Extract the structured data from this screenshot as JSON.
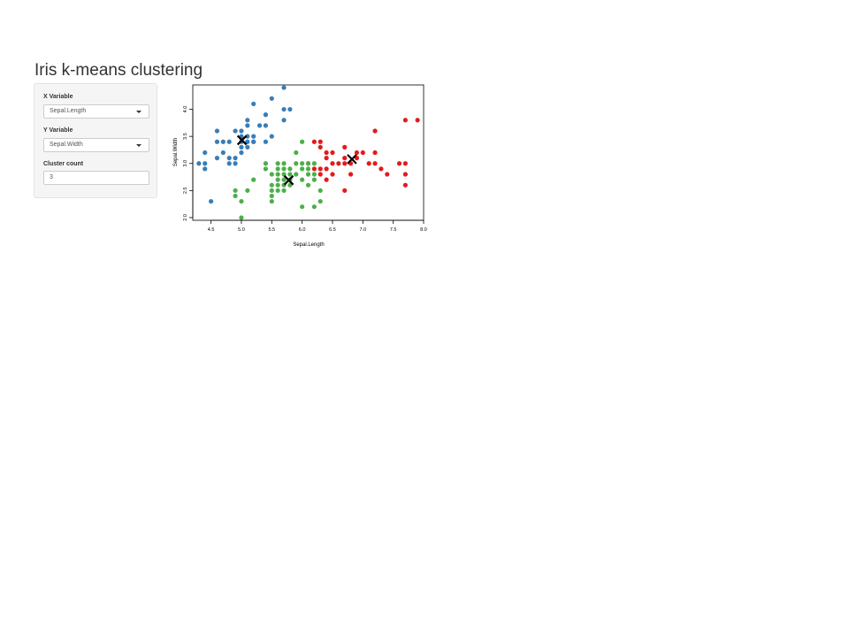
{
  "page": {
    "title": "Iris k-means clustering"
  },
  "sidebar": {
    "x_label": "X Variable",
    "x_value": "Sepal.Length",
    "y_label": "Y Variable",
    "y_value": "Sepal.Width",
    "k_label": "Cluster count",
    "k_value": "3"
  },
  "chart_data": {
    "type": "scatter",
    "xlabel": "Sepal.Length",
    "ylabel": "Sepal.Width",
    "xlim": [
      4.2,
      8.0
    ],
    "ylim": [
      1.95,
      4.45
    ],
    "xticks": [
      "4.5",
      "5.0",
      "5.5",
      "6.0",
      "6.5",
      "7.0",
      "7.5",
      "8.0"
    ],
    "yticks": [
      "2.0",
      "2.5",
      "3.0",
      "3.5",
      "4.0"
    ],
    "grid": false,
    "legend": "none",
    "colors": {
      "cluster_1": "#E41A1C",
      "cluster_2": "#377EB8",
      "cluster_3": "#4DAF4A",
      "centers": "#000000"
    },
    "series": [
      {
        "cluster": 1,
        "color": "#E41A1C",
        "points": [
          [
            7.0,
            3.2
          ],
          [
            6.9,
            3.1
          ],
          [
            6.7,
            3.1
          ],
          [
            7.7,
            3.8
          ],
          [
            7.9,
            3.8
          ],
          [
            7.2,
            3.6
          ],
          [
            6.5,
            3.2
          ],
          [
            6.4,
            3.2
          ],
          [
            6.3,
            3.3
          ],
          [
            6.2,
            3.4
          ],
          [
            6.3,
            3.4
          ],
          [
            6.1,
            3.0
          ],
          [
            6.3,
            2.9
          ],
          [
            6.5,
            3.0
          ],
          [
            6.7,
            3.0
          ],
          [
            6.8,
            3.0
          ],
          [
            7.1,
            3.0
          ],
          [
            7.6,
            3.0
          ],
          [
            7.3,
            2.9
          ],
          [
            7.2,
            3.0
          ],
          [
            7.4,
            2.8
          ],
          [
            7.7,
            3.0
          ],
          [
            7.7,
            2.8
          ],
          [
            7.7,
            2.6
          ],
          [
            6.7,
            2.5
          ],
          [
            6.4,
            3.1
          ],
          [
            6.7,
            3.3
          ],
          [
            6.9,
            3.2
          ],
          [
            6.5,
            2.8
          ],
          [
            6.3,
            2.8
          ],
          [
            6.4,
            2.9
          ],
          [
            6.6,
            3.0
          ],
          [
            6.2,
            2.9
          ],
          [
            6.4,
            2.7
          ],
          [
            6.8,
            2.8
          ],
          [
            7.2,
            3.2
          ]
        ]
      },
      {
        "cluster": 2,
        "color": "#377EB8",
        "points": [
          [
            5.1,
            3.5
          ],
          [
            4.9,
            3.0
          ],
          [
            4.7,
            3.2
          ],
          [
            4.6,
            3.1
          ],
          [
            5.0,
            3.6
          ],
          [
            5.4,
            3.9
          ],
          [
            4.6,
            3.4
          ],
          [
            5.0,
            3.4
          ],
          [
            4.4,
            2.9
          ],
          [
            4.9,
            3.1
          ],
          [
            5.4,
            3.7
          ],
          [
            4.8,
            3.4
          ],
          [
            4.8,
            3.0
          ],
          [
            4.3,
            3.0
          ],
          [
            5.8,
            4.0
          ],
          [
            5.7,
            4.4
          ],
          [
            5.1,
            3.8
          ],
          [
            5.7,
            3.8
          ],
          [
            5.4,
            3.4
          ],
          [
            5.1,
            3.7
          ],
          [
            5.2,
            4.1
          ],
          [
            5.5,
            4.2
          ],
          [
            4.5,
            2.3
          ],
          [
            5.0,
            3.2
          ],
          [
            5.3,
            3.7
          ],
          [
            5.2,
            3.5
          ],
          [
            5.0,
            3.3
          ],
          [
            4.4,
            3.2
          ],
          [
            5.2,
            3.4
          ],
          [
            4.7,
            3.4
          ],
          [
            4.8,
            3.1
          ],
          [
            4.9,
            3.6
          ],
          [
            5.5,
            3.5
          ],
          [
            5.1,
            3.3
          ],
          [
            5.0,
            3.5
          ],
          [
            4.4,
            3.0
          ],
          [
            5.1,
            3.4
          ],
          [
            4.6,
            3.6
          ],
          [
            5.7,
            4.0
          ],
          [
            5.4,
            3.9
          ],
          [
            5.2,
            3.4
          ]
        ]
      },
      {
        "cluster": 3,
        "color": "#4DAF4A",
        "points": [
          [
            5.5,
            2.3
          ],
          [
            5.7,
            2.8
          ],
          [
            4.9,
            2.4
          ],
          [
            5.2,
            2.7
          ],
          [
            5.0,
            2.0
          ],
          [
            5.9,
            3.0
          ],
          [
            6.0,
            2.2
          ],
          [
            5.6,
            2.9
          ],
          [
            5.6,
            3.0
          ],
          [
            5.8,
            2.7
          ],
          [
            6.2,
            2.2
          ],
          [
            5.6,
            2.5
          ],
          [
            5.9,
            3.2
          ],
          [
            6.1,
            2.8
          ],
          [
            6.3,
            2.5
          ],
          [
            5.7,
            2.6
          ],
          [
            5.5,
            2.4
          ],
          [
            5.8,
            2.7
          ],
          [
            6.0,
            2.7
          ],
          [
            5.4,
            3.0
          ],
          [
            6.0,
            3.4
          ],
          [
            5.6,
            2.8
          ],
          [
            5.5,
            2.5
          ],
          [
            5.5,
            2.6
          ],
          [
            6.1,
            3.0
          ],
          [
            5.8,
            2.6
          ],
          [
            5.0,
            2.3
          ],
          [
            5.6,
            2.7
          ],
          [
            5.7,
            3.0
          ],
          [
            5.7,
            2.9
          ],
          [
            6.2,
            2.8
          ],
          [
            5.1,
            2.5
          ],
          [
            4.9,
            2.5
          ],
          [
            5.7,
            2.5
          ],
          [
            5.8,
            2.8
          ],
          [
            6.0,
            2.9
          ],
          [
            6.1,
            2.6
          ],
          [
            6.2,
            2.7
          ],
          [
            5.6,
            2.6
          ],
          [
            5.5,
            2.8
          ],
          [
            6.0,
            3.0
          ],
          [
            6.3,
            2.3
          ],
          [
            5.8,
            2.9
          ],
          [
            5.9,
            2.8
          ],
          [
            6.1,
            2.9
          ],
          [
            6.2,
            3.0
          ],
          [
            5.4,
            2.9
          ],
          [
            5.7,
            2.7
          ]
        ]
      }
    ],
    "centers": [
      [
        6.82,
        3.08
      ],
      [
        5.01,
        3.43
      ],
      [
        5.78,
        2.69
      ]
    ]
  }
}
